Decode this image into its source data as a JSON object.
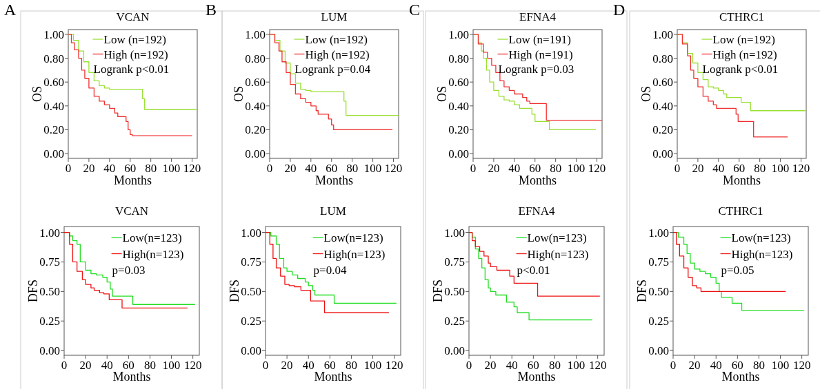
{
  "chart_data": [
    {
      "type": "step",
      "title": "VCAN",
      "xlabel": "Months",
      "ylabel": "OS",
      "annotations": [
        "A",
        "Logrank p<0.01"
      ],
      "legend": "top right",
      "xlim": [
        0,
        125
      ],
      "ylim": [
        -0.04,
        1.04
      ],
      "xticks": [
        0,
        20,
        40,
        60,
        80,
        100,
        120
      ],
      "yticks": [
        {
          "value": 0,
          "label": "0.00"
        },
        {
          "value": 0.2,
          "label": "0.20"
        },
        {
          "value": 0.4,
          "label": "0.40"
        },
        {
          "value": 0.6,
          "label": "0.60"
        },
        {
          "value": 0.8,
          "label": "0.80"
        },
        {
          "value": 1,
          "label": "1.00"
        }
      ],
      "series": [
        {
          "name": "Low (n=192)",
          "color": "#99e033",
          "x": [
            0,
            5,
            10,
            15,
            20,
            25,
            30,
            35,
            40,
            70,
            72,
            74,
            125
          ],
          "values": [
            1,
            0.95,
            0.86,
            0.77,
            0.68,
            0.61,
            0.57,
            0.55,
            0.54,
            0.54,
            0.46,
            0.37,
            0.37
          ]
        },
        {
          "name": "High (n=192)",
          "color": "#f03030",
          "x": [
            0,
            3,
            6,
            10,
            13,
            16,
            20,
            25,
            30,
            35,
            40,
            45,
            48,
            56,
            58,
            60,
            62,
            120
          ],
          "values": [
            1,
            0.93,
            0.87,
            0.8,
            0.7,
            0.63,
            0.55,
            0.48,
            0.44,
            0.41,
            0.38,
            0.34,
            0.31,
            0.27,
            0.2,
            0.16,
            0.15,
            0.15
          ]
        }
      ]
    },
    {
      "type": "step",
      "title": "LUM",
      "xlabel": "Months",
      "ylabel": "OS",
      "annotations": [
        "B",
        "Logrank p=0.04"
      ],
      "legend": "top right",
      "xlim": [
        0,
        125
      ],
      "ylim": [
        -0.04,
        1.04
      ],
      "xticks": [
        0,
        20,
        40,
        60,
        80,
        100,
        120
      ],
      "yticks": [
        {
          "value": 0,
          "label": "0.00"
        },
        {
          "value": 0.2,
          "label": "0.20"
        },
        {
          "value": 0.4,
          "label": "0.40"
        },
        {
          "value": 0.6,
          "label": "0.60"
        },
        {
          "value": 0.8,
          "label": "0.80"
        },
        {
          "value": 1,
          "label": "1.00"
        }
      ],
      "series": [
        {
          "name": "Low (n=192)",
          "color": "#99e033",
          "x": [
            0,
            5,
            10,
            15,
            20,
            25,
            30,
            35,
            40,
            71,
            72,
            74,
            125
          ],
          "values": [
            1,
            0.95,
            0.86,
            0.76,
            0.67,
            0.59,
            0.54,
            0.53,
            0.52,
            0.52,
            0.44,
            0.32,
            0.32
          ]
        },
        {
          "name": "High (n=192)",
          "color": "#f03030",
          "x": [
            0,
            5,
            9,
            12,
            16,
            20,
            25,
            30,
            35,
            40,
            45,
            47,
            57,
            60,
            62,
            119
          ],
          "values": [
            1,
            0.93,
            0.86,
            0.77,
            0.68,
            0.58,
            0.5,
            0.46,
            0.43,
            0.4,
            0.36,
            0.33,
            0.29,
            0.24,
            0.2,
            0.2
          ]
        }
      ]
    },
    {
      "type": "step",
      "title": "EFNA4",
      "xlabel": "Months",
      "ylabel": "OS",
      "annotations": [
        "C",
        "Logrank p=0.03"
      ],
      "legend": "top right",
      "xlim": [
        0,
        125
      ],
      "ylim": [
        -0.04,
        1.04
      ],
      "xticks": [
        0,
        20,
        40,
        60,
        80,
        100,
        120
      ],
      "yticks": [
        {
          "value": 0,
          "label": "0.00"
        },
        {
          "value": 0.2,
          "label": "0.20"
        },
        {
          "value": 0.4,
          "label": "0.40"
        },
        {
          "value": 0.6,
          "label": "0.60"
        },
        {
          "value": 0.8,
          "label": "0.80"
        },
        {
          "value": 1,
          "label": "1.00"
        }
      ],
      "series": [
        {
          "name": "Low (n=191)",
          "color": "#99e033",
          "x": [
            0,
            5,
            8,
            10,
            13,
            16,
            20,
            25,
            30,
            35,
            40,
            45,
            55,
            57,
            60,
            72,
            74,
            119
          ],
          "values": [
            1,
            0.93,
            0.86,
            0.8,
            0.7,
            0.6,
            0.53,
            0.48,
            0.45,
            0.44,
            0.41,
            0.38,
            0.38,
            0.33,
            0.27,
            0.27,
            0.2,
            0.2
          ]
        },
        {
          "name": "High (n=191)",
          "color": "#f03030",
          "x": [
            0,
            5,
            10,
            14,
            18,
            22,
            26,
            30,
            35,
            40,
            48,
            52,
            55,
            70,
            71,
            125
          ],
          "values": [
            1,
            0.92,
            0.85,
            0.8,
            0.74,
            0.68,
            0.61,
            0.56,
            0.53,
            0.5,
            0.47,
            0.44,
            0.42,
            0.42,
            0.28,
            0.28
          ]
        }
      ]
    },
    {
      "type": "step",
      "title": "CTHRC1",
      "xlabel": "Months",
      "ylabel": "OS",
      "annotations": [
        "D",
        "Logrank p<0.01"
      ],
      "legend": "top right",
      "xlim": [
        0,
        125
      ],
      "ylim": [
        -0.04,
        1.04
      ],
      "xticks": [
        0,
        20,
        40,
        60,
        80,
        100,
        120
      ],
      "yticks": [
        {
          "value": 0,
          "label": "0.00"
        },
        {
          "value": 0.2,
          "label": "0.20"
        },
        {
          "value": 0.4,
          "label": "0.40"
        },
        {
          "value": 0.6,
          "label": "0.60"
        },
        {
          "value": 0.8,
          "label": "0.80"
        },
        {
          "value": 1,
          "label": "1.00"
        }
      ],
      "series": [
        {
          "name": "Low (n=192)",
          "color": "#99e033",
          "x": [
            0,
            5,
            10,
            15,
            20,
            25,
            30,
            35,
            40,
            45,
            48,
            60,
            62,
            70,
            71,
            125
          ],
          "values": [
            1,
            0.93,
            0.84,
            0.76,
            0.68,
            0.62,
            0.56,
            0.55,
            0.53,
            0.5,
            0.47,
            0.47,
            0.43,
            0.43,
            0.36,
            0.36
          ]
        },
        {
          "name": "High (n=192)",
          "color": "#f03030",
          "x": [
            0,
            5,
            10,
            13,
            16,
            20,
            25,
            30,
            35,
            38,
            56,
            57,
            59,
            73,
            74,
            107
          ],
          "values": [
            1,
            0.92,
            0.82,
            0.7,
            0.63,
            0.56,
            0.48,
            0.44,
            0.41,
            0.38,
            0.38,
            0.33,
            0.27,
            0.27,
            0.14,
            0.14
          ]
        }
      ]
    },
    {
      "type": "step",
      "title": "VCAN",
      "xlabel": "Months",
      "ylabel": "DFS",
      "annotations": [
        "p=0.03"
      ],
      "legend": "top right",
      "xlim": [
        0,
        126
      ],
      "ylim": [
        -0.04,
        1.05
      ],
      "xticks": [
        0,
        20,
        40,
        60,
        80,
        100,
        120
      ],
      "yticks": [
        {
          "value": 0,
          "label": "0.00"
        },
        {
          "value": 0.25,
          "label": "0.25"
        },
        {
          "value": 0.5,
          "label": "0.50"
        },
        {
          "value": 0.75,
          "label": "0.75"
        },
        {
          "value": 1,
          "label": "1.00"
        }
      ],
      "series": [
        {
          "name": "Low(n=123)",
          "color": "#22dd22",
          "x": [
            0,
            5,
            8,
            12,
            15,
            20,
            25,
            30,
            34,
            36,
            40,
            43,
            45,
            63,
            64,
            122
          ],
          "values": [
            1,
            0.97,
            0.93,
            0.9,
            0.75,
            0.68,
            0.65,
            0.64,
            0.64,
            0.62,
            0.58,
            0.52,
            0.46,
            0.46,
            0.39,
            0.39
          ]
        },
        {
          "name": "High(n=123)",
          "color": "#ee1111",
          "x": [
            0,
            5,
            8,
            12,
            17,
            20,
            25,
            28,
            33,
            37,
            42,
            54,
            115
          ],
          "values": [
            1,
            0.9,
            0.75,
            0.67,
            0.6,
            0.56,
            0.53,
            0.51,
            0.49,
            0.48,
            0.43,
            0.36,
            0.36
          ]
        }
      ]
    },
    {
      "type": "step",
      "title": "LUM",
      "xlabel": "Months",
      "ylabel": "DFS",
      "annotations": [
        "p=0.04"
      ],
      "legend": "top right",
      "xlim": [
        0,
        126
      ],
      "ylim": [
        -0.04,
        1.05
      ],
      "xticks": [
        0,
        20,
        40,
        60,
        80,
        100,
        120
      ],
      "yticks": [
        {
          "value": 0,
          "label": "0.00"
        },
        {
          "value": 0.25,
          "label": "0.25"
        },
        {
          "value": 0.5,
          "label": "0.50"
        },
        {
          "value": 0.75,
          "label": "0.75"
        },
        {
          "value": 1,
          "label": "1.00"
        }
      ],
      "series": [
        {
          "name": "Low(n=123)",
          "color": "#22dd22",
          "x": [
            0,
            5,
            10,
            13,
            17,
            20,
            25,
            30,
            37,
            40,
            44,
            46,
            63,
            64,
            122
          ],
          "values": [
            1,
            0.97,
            0.9,
            0.78,
            0.7,
            0.67,
            0.64,
            0.61,
            0.58,
            0.55,
            0.51,
            0.47,
            0.47,
            0.4,
            0.4
          ]
        },
        {
          "name": "High(n=123)",
          "color": "#ee1111",
          "x": [
            0,
            4,
            7,
            10,
            14,
            18,
            22,
            27,
            33,
            42,
            55,
            115
          ],
          "values": [
            1,
            0.9,
            0.78,
            0.7,
            0.63,
            0.56,
            0.55,
            0.54,
            0.51,
            0.42,
            0.32,
            0.32
          ]
        }
      ]
    },
    {
      "type": "step",
      "title": "EFNA4",
      "xlabel": "Months",
      "ylabel": "DFS",
      "annotations": [
        "p<0.01"
      ],
      "legend": "top right",
      "xlim": [
        0,
        126
      ],
      "ylim": [
        -0.04,
        1.05
      ],
      "xticks": [
        0,
        20,
        40,
        60,
        80,
        100,
        120
      ],
      "yticks": [
        {
          "value": 0,
          "label": "0.00"
        },
        {
          "value": 0.25,
          "label": "0.25"
        },
        {
          "value": 0.5,
          "label": "0.50"
        },
        {
          "value": 0.75,
          "label": "0.75"
        },
        {
          "value": 1,
          "label": "1.00"
        }
      ],
      "series": [
        {
          "name": "Low(n=123)",
          "color": "#22dd22",
          "x": [
            0,
            3,
            6,
            9,
            12,
            15,
            18,
            20,
            25,
            34,
            35,
            42,
            45,
            55,
            56,
            115
          ],
          "values": [
            1,
            0.96,
            0.86,
            0.78,
            0.7,
            0.6,
            0.53,
            0.5,
            0.47,
            0.47,
            0.41,
            0.37,
            0.32,
            0.32,
            0.26,
            0.26
          ]
        },
        {
          "name": "High(n=123)",
          "color": "#ee1111",
          "x": [
            0,
            3,
            6,
            10,
            14,
            18,
            20,
            26,
            38,
            42,
            63,
            64,
            122
          ],
          "values": [
            1,
            0.93,
            0.88,
            0.84,
            0.8,
            0.74,
            0.71,
            0.68,
            0.63,
            0.57,
            0.57,
            0.46,
            0.46
          ]
        }
      ]
    },
    {
      "type": "step",
      "title": "CTHRC1",
      "xlabel": "Months",
      "ylabel": "DFS",
      "annotations": [
        "p=0.05"
      ],
      "legend": "top right",
      "xlim": [
        0,
        126
      ],
      "ylim": [
        -0.04,
        1.05
      ],
      "xticks": [
        0,
        20,
        40,
        60,
        80,
        100,
        120
      ],
      "yticks": [
        {
          "value": 0,
          "label": "0.00"
        },
        {
          "value": 0.25,
          "label": "0.25"
        },
        {
          "value": 0.5,
          "label": "0.50"
        },
        {
          "value": 0.75,
          "label": "0.75"
        },
        {
          "value": 1,
          "label": "1.00"
        }
      ],
      "series": [
        {
          "name": "Low(n=123)",
          "color": "#22dd22",
          "x": [
            0,
            5,
            10,
            13,
            16,
            20,
            25,
            30,
            35,
            40,
            43,
            45,
            55,
            64,
            122
          ],
          "values": [
            1,
            0.96,
            0.9,
            0.82,
            0.74,
            0.69,
            0.67,
            0.65,
            0.62,
            0.57,
            0.5,
            0.45,
            0.4,
            0.34,
            0.34
          ]
        },
        {
          "name": "High(n=123)",
          "color": "#ee1111",
          "x": [
            0,
            3,
            6,
            10,
            14,
            18,
            22,
            26,
            105
          ],
          "values": [
            1,
            0.9,
            0.8,
            0.7,
            0.62,
            0.55,
            0.53,
            0.5,
            0.5
          ]
        }
      ]
    }
  ]
}
